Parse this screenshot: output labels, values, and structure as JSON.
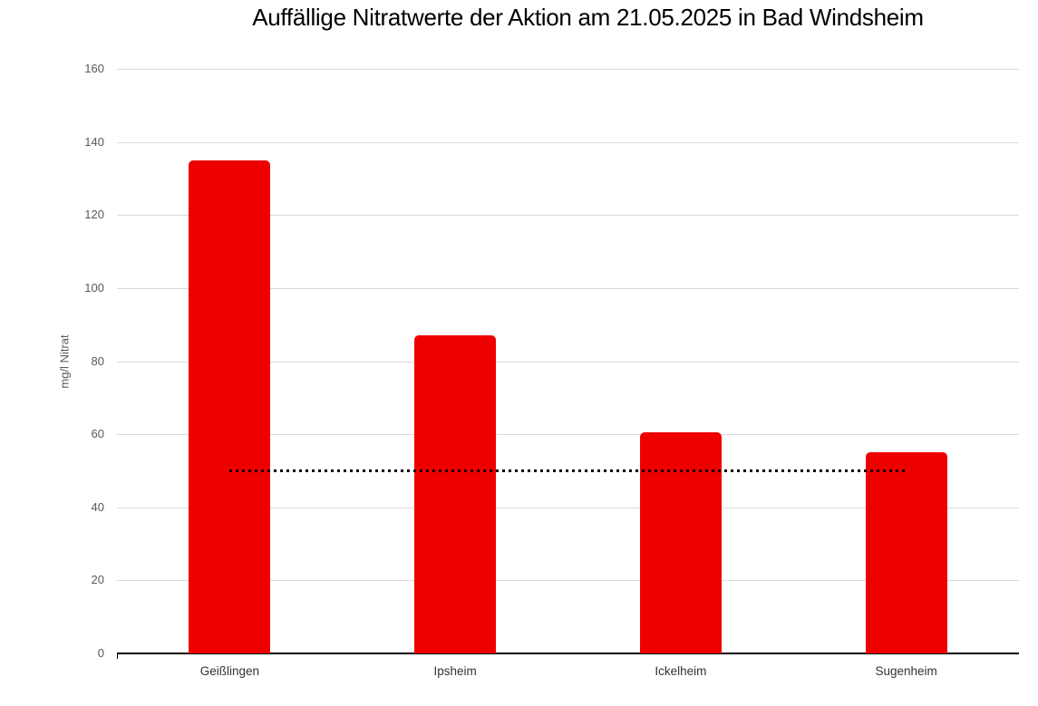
{
  "chart_data": {
    "type": "bar",
    "title": "Auffällige Nitratwerte der Aktion am 21.05.2025 in Bad Windsheim",
    "categories": [
      "Geißlingen",
      "Ipsheim",
      "Ickelheim",
      "Sugenheim"
    ],
    "values": [
      135,
      87,
      60.5,
      55
    ],
    "bar_color": "#ee0000",
    "reference_line": {
      "value": 50,
      "style": "dotted",
      "color": "#000000"
    },
    "xlabel": "",
    "ylabel": "mg/l Nitrat",
    "ylim": [
      0,
      160
    ],
    "yticks": [
      0,
      20,
      40,
      60,
      80,
      100,
      120,
      140,
      160
    ],
    "grid": true,
    "legend": "none",
    "colors": {
      "gridline": "#d9d9d9",
      "axis": "#000000",
      "ytick_label": "#595959",
      "category_label": "#333333",
      "title": "#000000"
    }
  }
}
